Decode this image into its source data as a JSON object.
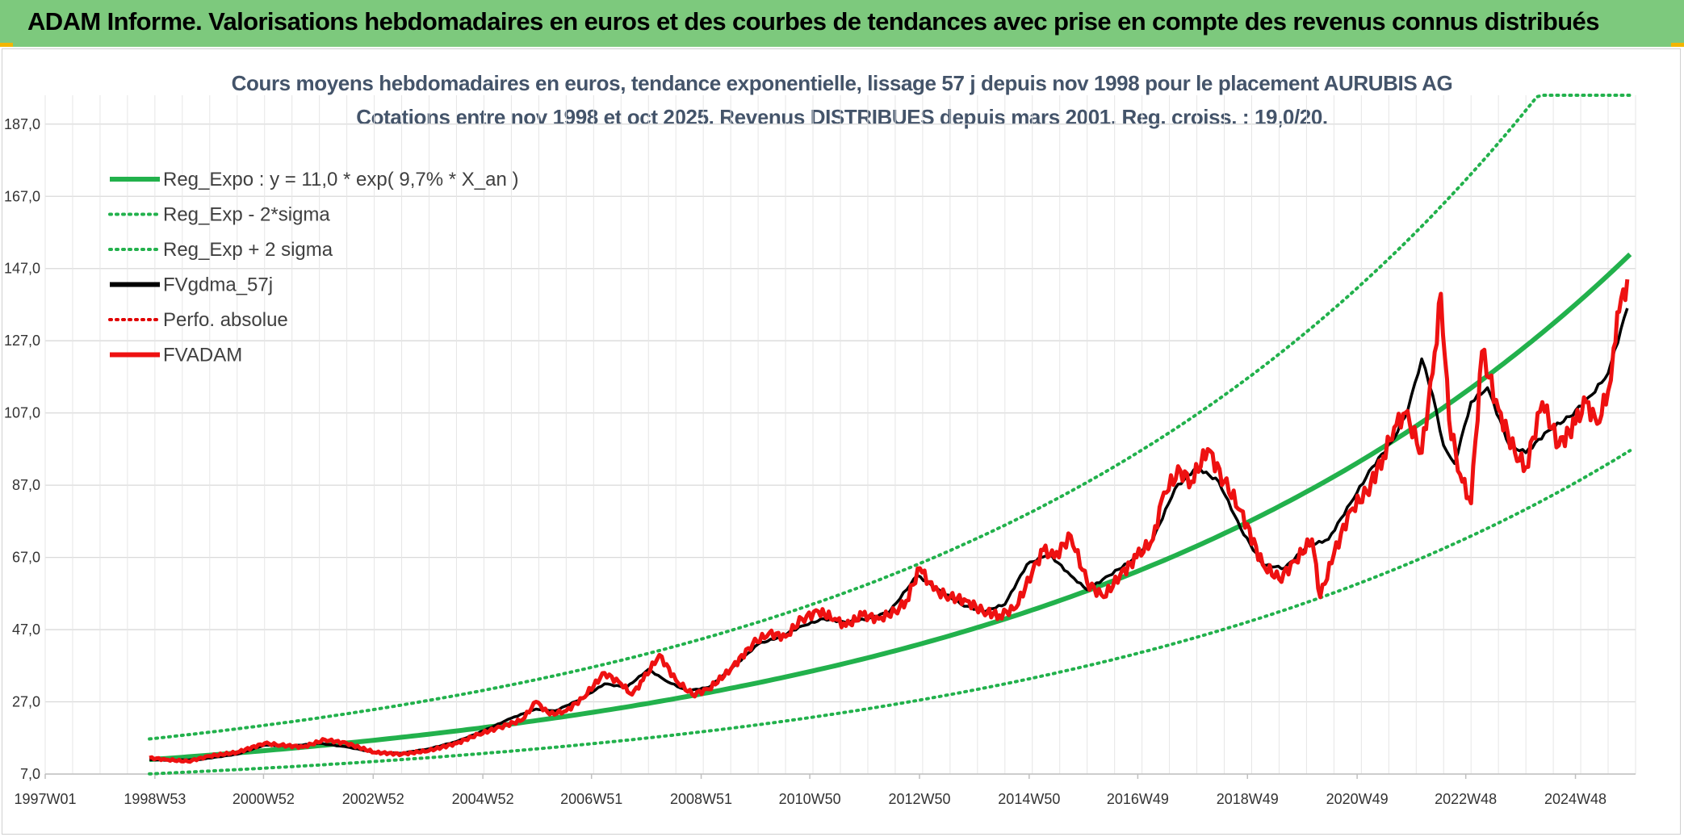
{
  "header": {
    "title": "ADAM Informe. Valorisations hebdomadaires en euros et des courbes de tendances avec prise en compte des revenus connus distribués"
  },
  "chart_data": {
    "type": "line",
    "title": "Cours moyens hebdomadaires en euros, tendance exponentielle, lissage 57 j depuis nov 1998 pour le placement AURUBIS AG",
    "subtitle": "Cotations entre nov 1998 et oct 2025. Revenus DISTRIBUES depuis mars 2001. Reg. croiss. : 19,0/20.",
    "xlabel": "",
    "ylabel": "",
    "x_ticks": [
      "1997W01",
      "1998W53",
      "2000W52",
      "2002W52",
      "2004W52",
      "2006W51",
      "2008W51",
      "2010W50",
      "2012W50",
      "2014W50",
      "2016W49",
      "2018W49",
      "2020W49",
      "2022W48",
      "2024W48"
    ],
    "x_range_years": [
      1997.0,
      2026.0
    ],
    "y_ticks": [
      "7,0",
      "27,0",
      "47,0",
      "67,0",
      "87,0",
      "107,0",
      "127,0",
      "147,0",
      "167,0",
      "187,0"
    ],
    "ylim": [
      7.0,
      195.0
    ],
    "grid": true,
    "legend_position": "top-left",
    "regression": {
      "a": 11.0,
      "rate": 0.097,
      "start_year": 1998.9
    },
    "series": [
      {
        "name": "Reg_Expo : y = 11,0 * exp( 9,7% *  X_an )",
        "color": "#22b14c",
        "style": "solid"
      },
      {
        "name": "Reg_Exp - 2*sigma",
        "color": "#22b14c",
        "style": "dotted"
      },
      {
        "name": "Reg_Exp + 2 sigma",
        "color": "#22b14c",
        "style": "dotted"
      },
      {
        "name": "FVgdma_57j",
        "color": "#000000",
        "style": "solid"
      },
      {
        "name": "Perfo. absolue",
        "color": "#e00000",
        "style": "dotted"
      },
      {
        "name": "FVADAM",
        "color": "#ee1111",
        "style": "solid"
      }
    ],
    "fvadam": {
      "x": [
        1998.9,
        1999.2,
        1999.6,
        2000.0,
        2000.5,
        2001.0,
        2001.3,
        2001.7,
        2002.1,
        2002.5,
        2003.0,
        2003.5,
        2004.0,
        2004.5,
        2004.9,
        2005.3,
        2005.7,
        2005.95,
        2006.2,
        2006.5,
        2006.8,
        2007.2,
        2007.5,
        2007.7,
        2007.9,
        2008.2,
        2008.5,
        2008.8,
        2009.1,
        2009.5,
        2009.9,
        2010.2,
        2010.5,
        2010.8,
        2011.1,
        2011.4,
        2011.6,
        2011.9,
        2012.2,
        2012.5,
        2012.7,
        2012.95,
        2013.2,
        2013.5,
        2013.8,
        2014.1,
        2014.4,
        2014.7,
        2015.0,
        2015.2,
        2015.4,
        2015.7,
        2016.0,
        2016.3,
        2016.6,
        2016.9,
        2017.2,
        2017.4,
        2017.7,
        2017.9,
        2018.2,
        2018.5,
        2018.8,
        2019.2,
        2019.5,
        2019.8,
        2020.1,
        2020.25,
        2020.5,
        2020.8,
        2021.1,
        2021.4,
        2021.6,
        2021.8,
        2022.1,
        2022.3,
        2022.45,
        2022.6,
        2022.8,
        2023.0,
        2023.2,
        2023.5,
        2023.8,
        2024.0,
        2024.3,
        2024.6,
        2024.9,
        2025.1,
        2025.3,
        2025.5,
        2025.6,
        2025.7,
        2025.85
      ],
      "y": [
        11.5,
        11.0,
        10.5,
        12.0,
        13.0,
        15.5,
        15.0,
        14.5,
        16.5,
        15.5,
        13.0,
        12.5,
        13.5,
        15.5,
        18.0,
        20.0,
        22.0,
        27.0,
        23.5,
        24.5,
        28.0,
        35.0,
        32.0,
        29.0,
        33.0,
        40.0,
        33.0,
        29.0,
        30.5,
        36.0,
        43.0,
        46.0,
        45.0,
        50.0,
        52.0,
        50.0,
        48.0,
        51.0,
        50.0,
        52.0,
        55.0,
        64.0,
        58.0,
        56.0,
        55.0,
        52.0,
        51.0,
        53.0,
        63.0,
        69.0,
        67.0,
        73.0,
        60.0,
        56.0,
        62.0,
        67.0,
        72.0,
        85.0,
        91.0,
        88.0,
        97.0,
        88.0,
        80.0,
        65.0,
        61.0,
        66.0,
        72.0,
        56.0,
        68.0,
        80.0,
        85.0,
        95.0,
        103.0,
        107.0,
        96.0,
        118.0,
        140.0,
        105.0,
        90.0,
        82.0,
        124.0,
        108.0,
        96.0,
        92.0,
        110.0,
        98.0,
        104.0,
        110.0,
        104.0,
        113.0,
        125.0,
        135.0,
        144.0
      ]
    },
    "fvgdma_57j": {
      "x": [
        1998.9,
        1999.3,
        1999.8,
        2000.5,
        2001.0,
        2001.5,
        2002.0,
        2002.5,
        2003.0,
        2003.5,
        2004.0,
        2004.5,
        2005.0,
        2005.5,
        2005.95,
        2006.3,
        2006.8,
        2007.2,
        2007.6,
        2008.0,
        2008.3,
        2008.7,
        2009.1,
        2009.5,
        2010.0,
        2010.4,
        2010.8,
        2011.2,
        2011.6,
        2012.0,
        2012.4,
        2012.9,
        2013.3,
        2013.7,
        2014.1,
        2014.5,
        2014.9,
        2015.3,
        2015.7,
        2016.0,
        2016.4,
        2016.8,
        2017.2,
        2017.6,
        2018.0,
        2018.4,
        2018.8,
        2019.2,
        2019.6,
        2020.0,
        2020.4,
        2020.8,
        2021.2,
        2021.6,
        2021.85,
        2022.1,
        2022.3,
        2022.5,
        2022.7,
        2023.0,
        2023.3,
        2023.7,
        2024.0,
        2024.4,
        2024.8,
        2025.2,
        2025.5,
        2025.85
      ],
      "y": [
        11.0,
        10.8,
        11.0,
        12.5,
        15.0,
        14.8,
        15.5,
        14.5,
        13.0,
        12.8,
        14.0,
        16.0,
        19.0,
        22.5,
        25.0,
        24.5,
        28.0,
        32.0,
        31.0,
        36.0,
        33.0,
        30.0,
        31.0,
        36.0,
        43.0,
        45.0,
        48.0,
        50.0,
        49.0,
        50.0,
        52.0,
        62.0,
        58.0,
        54.0,
        52.0,
        54.0,
        65.0,
        68.0,
        62.0,
        58.0,
        62.0,
        66.0,
        72.0,
        86.0,
        92.0,
        88.0,
        75.0,
        65.0,
        64.0,
        70.0,
        72.0,
        82.0,
        92.0,
        100.0,
        108.0,
        122.0,
        112.0,
        98.0,
        93.0,
        110.0,
        114.0,
        98.0,
        96.0,
        102.0,
        106.0,
        112.0,
        118.0,
        136.0
      ]
    }
  }
}
